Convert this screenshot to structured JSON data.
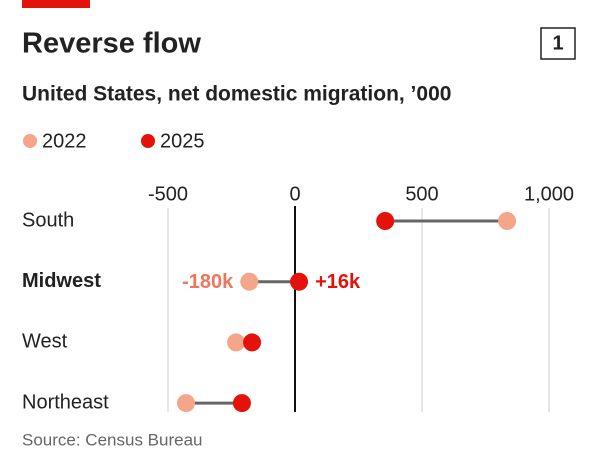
{
  "chart_data": {
    "type": "dumbbell",
    "title": "Reverse flow",
    "badge": "1",
    "subtitle": "United States, net domestic migration, ’000",
    "categories": [
      "South",
      "Midwest",
      "West",
      "Northeast"
    ],
    "bold_categories": [
      false,
      true,
      false,
      false
    ],
    "series": [
      {
        "name": "2022",
        "color": "#f4a58a",
        "label_color": "#f0765a",
        "values": [
          835,
          -180,
          -232,
          -429
        ],
        "value_labels": [
          null,
          "-180k",
          null,
          null
        ]
      },
      {
        "name": "2025",
        "color": "#e3120b",
        "label_color": "#e3120b",
        "values": [
          355,
          16,
          -169,
          -209
        ],
        "value_labels": [
          null,
          "+16k",
          null,
          null
        ]
      }
    ],
    "xlim": [
      -500,
      1000
    ],
    "xticks": [
      -500,
      0,
      500,
      {
        "value": 1000,
        "label": "1,000"
      }
    ],
    "grid": true,
    "source": "Source: Census Bureau"
  }
}
